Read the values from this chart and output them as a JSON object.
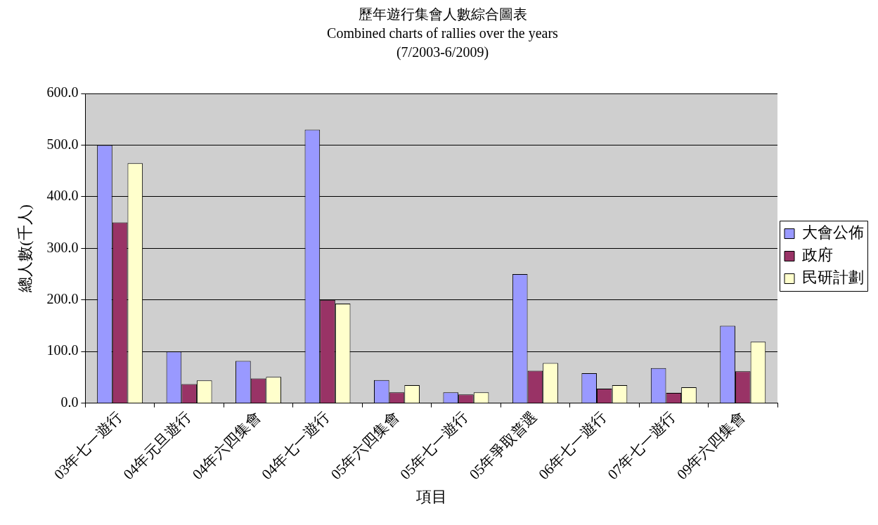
{
  "chart_data": {
    "type": "bar",
    "title": "歷年遊行集會人數綜合圖表\nCombined charts of rallies over the years\n(7/2003-6/2009)",
    "xlabel": "項目",
    "ylabel": "總人數(千人)",
    "categories": [
      "03年七一遊行",
      "04年元旦遊行",
      "04年六四集會",
      "04年七一遊行",
      "05年六四集會",
      "05年七一遊行",
      "05年爭取普選",
      "06年七一遊行",
      "07年七一遊行",
      "09年六四集會"
    ],
    "series": [
      {
        "name": "大會公佈",
        "color": "#9999ff",
        "values": [
          500,
          100,
          82,
          530,
          45,
          21,
          250,
          58,
          68,
          150
        ]
      },
      {
        "name": "政府",
        "color": "#993366",
        "values": [
          350,
          37,
          48,
          200,
          21,
          17,
          63,
          28,
          20,
          62
        ]
      },
      {
        "name": "民研計劃",
        "color": "#ffffcc",
        "values": [
          465,
          44,
          51,
          193,
          35,
          21,
          78,
          35,
          31,
          119
        ]
      }
    ],
    "ylim": [
      0,
      600
    ],
    "yticks": [
      {
        "value": 0,
        "label": "0.0"
      },
      {
        "value": 100,
        "label": "100.0"
      },
      {
        "value": 200,
        "label": "200.0"
      },
      {
        "value": 300,
        "label": "300.0"
      },
      {
        "value": 400,
        "label": "400.0"
      },
      {
        "value": 500,
        "label": "500.0"
      },
      {
        "value": 600,
        "label": "600.0"
      }
    ],
    "grid": "y",
    "legend": "right"
  }
}
